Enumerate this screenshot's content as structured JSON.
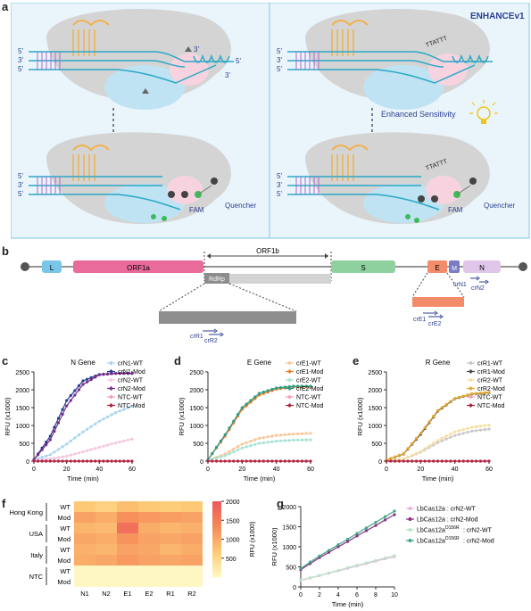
{
  "panel_labels": {
    "a": "a",
    "b": "b",
    "c": "c",
    "d": "d",
    "e": "e",
    "f": "f",
    "g": "g"
  },
  "panel_a": {
    "tag": "ENHANCEv1",
    "enhanced_sensitivity": "Enhanced Sensitivity",
    "fam_left": "FAM",
    "quencher_left": "Quencher",
    "fam_right": "FAM",
    "quencher_right": "Quencher",
    "five_prime": "5'",
    "three_prime": "3'",
    "ext_seq": "TTATTT",
    "colors": {
      "panel_bg": "#e9f5fb",
      "border": "#7ec8e3",
      "rna": "#f2b14a",
      "dna": "#2aa8c6",
      "protein": "#cfcfcf",
      "light": "#f0c419"
    }
  },
  "panel_b": {
    "orf1b": "ORF1b",
    "L": "L",
    "ORF1a": "ORF1a",
    "RdRp": "RdRp",
    "S": "S",
    "E": "E",
    "M": "M",
    "N": "N",
    "crN1": "crN1",
    "crN2": "crN2",
    "crE1": "crE1",
    "crE2": "crE2",
    "crR1": "crR1",
    "crR2": "crR2",
    "colors": {
      "L": "#7ac6e8",
      "ORF1a": "#e86b9a",
      "RdRp": "#8d8d8d",
      "orf1b_gray": "#d3d3d3",
      "S": "#8fd19e",
      "E": "#f28c6b",
      "M": "#7b7bc6",
      "N": "#e0c6e8"
    }
  },
  "chart_data": [
    {
      "type": "line",
      "panel": "c",
      "title": "N Gene",
      "xlabel": "Time (min)",
      "ylabel": "RFU (x1000)",
      "xlim": [
        0,
        60
      ],
      "ylim": [
        0,
        2500
      ],
      "xticks": [
        "0",
        "20",
        "40",
        "60"
      ],
      "yticks": [
        "0",
        "500",
        "1000",
        "1500",
        "2000",
        "2500"
      ],
      "series": [
        {
          "name": "crN1-WT",
          "color": "#a9d5f0",
          "x": [
            0,
            10,
            20,
            30,
            40,
            50,
            60
          ],
          "values": [
            40,
            180,
            480,
            820,
            1120,
            1360,
            1540
          ]
        },
        {
          "name": "crN1-Mod",
          "color": "#2a3c8f",
          "x": [
            0,
            10,
            20,
            30,
            40,
            50,
            60
          ],
          "values": [
            40,
            700,
            1700,
            2250,
            2430,
            2460,
            2460
          ]
        },
        {
          "name": "crN2-WT",
          "color": "#f6c6e0",
          "x": [
            0,
            10,
            20,
            30,
            40,
            50,
            60
          ],
          "values": [
            20,
            60,
            140,
            260,
            390,
            510,
            620
          ]
        },
        {
          "name": "crN2-Mod",
          "color": "#7a2e8a",
          "x": [
            0,
            10,
            20,
            30,
            40,
            50,
            60
          ],
          "values": [
            40,
            600,
            1550,
            2150,
            2420,
            2460,
            2460
          ]
        },
        {
          "name": "NTC-WT",
          "color": "#f2a2b2",
          "x": [
            0,
            10,
            20,
            30,
            40,
            50,
            60
          ],
          "values": [
            0,
            0,
            0,
            0,
            0,
            0,
            0
          ]
        },
        {
          "name": "NTC-Mod",
          "color": "#b0223e",
          "x": [
            0,
            10,
            20,
            30,
            40,
            50,
            60
          ],
          "values": [
            0,
            0,
            0,
            0,
            0,
            0,
            0
          ]
        }
      ]
    },
    {
      "type": "line",
      "panel": "d",
      "title": "E Gene",
      "xlabel": "Time (min)",
      "ylabel": "RFU (x1000)",
      "xlim": [
        0,
        60
      ],
      "ylim": [
        0,
        2500
      ],
      "xticks": [
        "0",
        "20",
        "40",
        "60"
      ],
      "yticks": [
        "0",
        "500",
        "1000",
        "1500",
        "2000",
        "2500"
      ],
      "series": [
        {
          "name": "crE1-WT",
          "color": "#f9c79a",
          "x": [
            0,
            10,
            20,
            30,
            40,
            50,
            60
          ],
          "values": [
            20,
            200,
            480,
            640,
            720,
            760,
            780
          ]
        },
        {
          "name": "crE1-Mod",
          "color": "#ee7d2b",
          "x": [
            0,
            10,
            20,
            30,
            40,
            50,
            60
          ],
          "values": [
            40,
            700,
            1450,
            1850,
            2020,
            2080,
            2080
          ]
        },
        {
          "name": "crE2-WT",
          "color": "#a8e2d6",
          "x": [
            0,
            10,
            20,
            30,
            40,
            50,
            60
          ],
          "values": [
            20,
            150,
            370,
            500,
            560,
            590,
            600
          ]
        },
        {
          "name": "crE2-Mod",
          "color": "#2e9c85",
          "x": [
            0,
            10,
            20,
            30,
            40,
            50,
            60
          ],
          "values": [
            40,
            740,
            1500,
            1900,
            2050,
            2100,
            2100
          ]
        },
        {
          "name": "NTC-WT",
          "color": "#f2a2b2",
          "x": [
            0,
            10,
            20,
            30,
            40,
            50,
            60
          ],
          "values": [
            0,
            0,
            0,
            0,
            0,
            0,
            0
          ]
        },
        {
          "name": "NTC-Mod",
          "color": "#b0223e",
          "x": [
            0,
            10,
            20,
            30,
            40,
            50,
            60
          ],
          "values": [
            0,
            0,
            0,
            0,
            0,
            0,
            0
          ]
        }
      ]
    },
    {
      "type": "line",
      "panel": "e",
      "title": "R Gene",
      "xlabel": "Time (min)",
      "ylabel": "RFU (x1000)",
      "xlim": [
        0,
        60
      ],
      "ylim": [
        0,
        2500
      ],
      "xticks": [
        "0",
        "20",
        "40",
        "60"
      ],
      "yticks": [
        "0",
        "500",
        "1000",
        "1500",
        "2000",
        "2500"
      ],
      "series": [
        {
          "name": "crR1-WT",
          "color": "#c8c8c8",
          "x": [
            0,
            10,
            20,
            30,
            40,
            50,
            60
          ],
          "values": [
            10,
            60,
            250,
            520,
            720,
            840,
            900
          ]
        },
        {
          "name": "crR1-Mod",
          "color": "#4a4a4a",
          "x": [
            0,
            10,
            20,
            30,
            40,
            50,
            60
          ],
          "values": [
            30,
            200,
            750,
            1400,
            1750,
            1880,
            1920
          ]
        },
        {
          "name": "crR2-WT",
          "color": "#f7dea2",
          "x": [
            0,
            10,
            20,
            30,
            40,
            50,
            60
          ],
          "values": [
            10,
            60,
            270,
            580,
            820,
            950,
            1010
          ]
        },
        {
          "name": "crR2-Mod",
          "color": "#e3a92f",
          "x": [
            0,
            10,
            20,
            30,
            40,
            50,
            60
          ],
          "values": [
            30,
            210,
            780,
            1420,
            1760,
            1890,
            1930
          ]
        },
        {
          "name": "NTC-WT",
          "color": "#f2a2b2",
          "x": [
            0,
            10,
            20,
            30,
            40,
            50,
            60
          ],
          "values": [
            0,
            0,
            0,
            0,
            0,
            0,
            0
          ]
        },
        {
          "name": "NTC-Mod",
          "color": "#b0223e",
          "x": [
            0,
            10,
            20,
            30,
            40,
            50,
            60
          ],
          "values": [
            0,
            0,
            0,
            0,
            0,
            0,
            0
          ]
        }
      ]
    },
    {
      "type": "heatmap",
      "panel": "f",
      "columns": [
        "N1",
        "N2",
        "E1",
        "E2",
        "R1",
        "R2"
      ],
      "groups": [
        "Hong Kong",
        "USA",
        "Italy",
        "NTC"
      ],
      "rows": [
        {
          "group": "Hong Kong",
          "label": "WT",
          "values": [
            700,
            600,
            800,
            700,
            650,
            700
          ]
        },
        {
          "group": "Hong Kong",
          "label": "Mod",
          "values": [
            1100,
            1000,
            1300,
            1200,
            1150,
            1100
          ]
        },
        {
          "group": "USA",
          "label": "WT",
          "values": [
            900,
            850,
            1700,
            1000,
            900,
            950
          ]
        },
        {
          "group": "USA",
          "label": "Mod",
          "values": [
            1050,
            1000,
            1250,
            1100,
            1050,
            1100
          ]
        },
        {
          "group": "Italy",
          "label": "WT",
          "values": [
            950,
            900,
            1100,
            1050,
            900,
            1000
          ]
        },
        {
          "group": "Italy",
          "label": "Mod",
          "values": [
            1000,
            1050,
            1200,
            1100,
            1050,
            1100
          ]
        },
        {
          "group": "NTC",
          "label": "WT",
          "values": [
            50,
            50,
            50,
            50,
            50,
            50
          ]
        },
        {
          "group": "NTC",
          "label": "Mod",
          "values": [
            50,
            50,
            50,
            50,
            50,
            50
          ]
        }
      ],
      "colorbar_label": "RFU (x1000)",
      "colorbar_ticks": [
        "500",
        "1000",
        "1500",
        "2000"
      ],
      "clim": [
        0,
        2000
      ]
    },
    {
      "type": "line",
      "panel": "g",
      "xlabel": "Time (min)",
      "ylabel": "RFU (x1000)",
      "xlim": [
        0,
        10
      ],
      "ylim": [
        0,
        2000
      ],
      "xticks": [
        "0",
        "2",
        "4",
        "6",
        "8",
        "10"
      ],
      "yticks": [
        "0",
        "500",
        "1000",
        "1500",
        "2000"
      ],
      "series": [
        {
          "name": "LbCas12a : crN2-WT",
          "color": "#e7b6e3",
          "x": [
            0,
            1,
            2,
            3,
            4,
            5,
            6,
            7,
            8,
            9,
            10
          ],
          "values": [
            160,
            220,
            280,
            340,
            400,
            460,
            520,
            580,
            640,
            700,
            750
          ]
        },
        {
          "name": "LbCas12a : crN2-Mod",
          "color": "#8b2e82",
          "x": [
            0,
            1,
            2,
            3,
            4,
            5,
            6,
            7,
            8,
            9,
            10
          ],
          "values": [
            430,
            580,
            730,
            860,
            1000,
            1130,
            1270,
            1400,
            1530,
            1670,
            1800
          ]
        },
        {
          "name": "LbCas12a D156R : crN2-WT",
          "color": "#b9e5c2",
          "x": [
            0,
            1,
            2,
            3,
            4,
            5,
            6,
            7,
            8,
            9,
            10
          ],
          "values": [
            170,
            230,
            290,
            350,
            410,
            480,
            540,
            600,
            660,
            720,
            780
          ]
        },
        {
          "name": "LbCas12a D156R : crN2-Mod",
          "color": "#3fa687",
          "x": [
            0,
            1,
            2,
            3,
            4,
            5,
            6,
            7,
            8,
            9,
            10
          ],
          "values": [
            460,
            620,
            770,
            910,
            1050,
            1190,
            1330,
            1470,
            1610,
            1750,
            1890
          ]
        }
      ],
      "legend_labels": [
        {
          "main": "LbCas12a : crN2-WT"
        },
        {
          "main": "LbCas12a : crN2-Mod"
        },
        {
          "pre": "LbCas12a",
          "sup": "D156R",
          "post": ": crN2-WT"
        },
        {
          "pre": "LbCas12a",
          "sup": "D156R",
          "post": ": crN2-Mod"
        }
      ]
    }
  ]
}
